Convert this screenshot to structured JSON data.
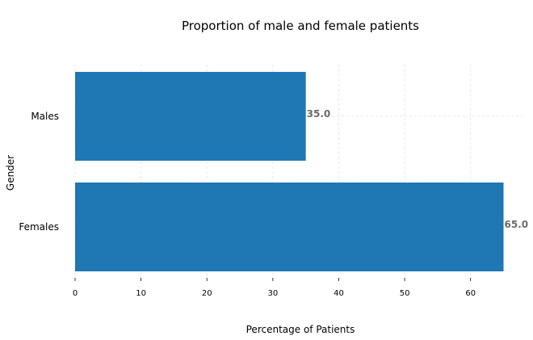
{
  "chart_data": {
    "type": "bar",
    "orientation": "horizontal",
    "title": "Proportion of male and female patients",
    "xlabel": "Percentage of Patients",
    "ylabel": "Gender",
    "categories": [
      "Males",
      "Females"
    ],
    "values": [
      35.0,
      65.0
    ],
    "value_labels": [
      "35.0",
      "65.0"
    ],
    "xlim": [
      0,
      68
    ],
    "xticks": [
      0,
      10,
      20,
      30,
      40,
      50,
      60
    ],
    "grid": true,
    "bar_color": "#1f77b4",
    "label_color": "#6b6b6b"
  }
}
